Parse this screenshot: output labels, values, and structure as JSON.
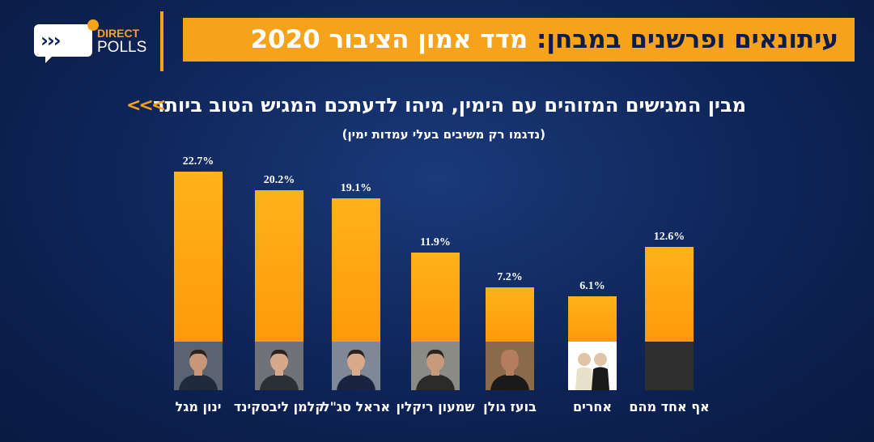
{
  "header": {
    "logo_top": "DIRECT",
    "logo_bottom": "POLLS",
    "title_part1": "עיתונאים ופרשנים במבחן:",
    "title_part2": "מדד אמון הציבור 2020"
  },
  "question": "מבין המגישים המזוהים עם הימין, מיהו לדעתכם המגיש הטוב ביותר",
  "question_arrows": "<<<",
  "subtitle": "(נדגמו רק משיבים בעלי עמדות ימין)",
  "colors": {
    "bar": "#ffa010",
    "header": "#f7a21b",
    "background": "#0e2457",
    "photo_dark": "#2f2f2f"
  },
  "chart_data": {
    "type": "bar",
    "categories": [
      "ינון מגל",
      "קלמן ליבסקינד",
      "אראל סג\"ל",
      "שמעון ריקלין",
      "בועז גולן",
      "אחרים",
      "אף אחד מהם"
    ],
    "values": [
      22.7,
      20.2,
      19.1,
      11.9,
      7.2,
      6.1,
      12.6
    ],
    "value_labels": [
      "22.7%",
      "20.2%",
      "19.1%",
      "11.9%",
      "7.2%",
      "6.1%",
      "12.6%"
    ],
    "ylim": [
      0,
      22.7
    ],
    "grid": false,
    "legend": "none"
  }
}
